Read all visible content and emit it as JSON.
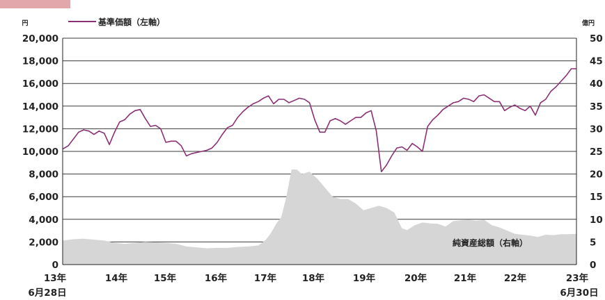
{
  "colors": {
    "tab": "#e1a7aa",
    "nav_line": "#8b2f73",
    "aum_area": "#d6d6d6",
    "grid": "#3a3a3a"
  },
  "chart_data": {
    "type": "line",
    "x_labels": [
      "13年",
      "14年",
      "15年",
      "16年",
      "17年",
      "18年",
      "19年",
      "20年",
      "21年",
      "22年",
      "23年"
    ],
    "x_start_sub": "6月28日",
    "x_end_sub": "6月30日",
    "left_axis": {
      "unit": "円",
      "ylim": [
        0,
        20000
      ],
      "ticks": [
        "0",
        "2,000",
        "4,000",
        "6,000",
        "8,000",
        "10,000",
        "12,000",
        "14,000",
        "16,000",
        "18,000",
        "20,000"
      ]
    },
    "right_axis": {
      "unit": "億円",
      "ylim": [
        0,
        50
      ],
      "ticks": [
        "0",
        "5",
        "10",
        "15",
        "20",
        "25",
        "30",
        "35",
        "40",
        "45",
        "50"
      ]
    },
    "grid": true,
    "series": [
      {
        "name": "基準価額（左軸）",
        "type": "line",
        "axis": "left",
        "x": [
          2013.49,
          2013.6,
          2013.7,
          2013.8,
          2013.9,
          2014.0,
          2014.1,
          2014.2,
          2014.3,
          2014.4,
          2014.5,
          2014.6,
          2014.7,
          2014.8,
          2014.9,
          2015.0,
          2015.1,
          2015.2,
          2015.3,
          2015.4,
          2015.5,
          2015.6,
          2015.7,
          2015.8,
          2015.9,
          2016.0,
          2016.1,
          2016.2,
          2016.3,
          2016.4,
          2016.5,
          2016.6,
          2016.7,
          2016.8,
          2016.9,
          2017.0,
          2017.1,
          2017.2,
          2017.3,
          2017.4,
          2017.5,
          2017.6,
          2017.7,
          2017.8,
          2017.9,
          2018.0,
          2018.1,
          2018.2,
          2018.3,
          2018.4,
          2018.5,
          2018.6,
          2018.7,
          2018.8,
          2018.9,
          2019.0,
          2019.1,
          2019.2,
          2019.3,
          2019.4,
          2019.5,
          2019.6,
          2019.7,
          2019.8,
          2019.9,
          2020.0,
          2020.1,
          2020.2,
          2020.3,
          2020.4,
          2020.5,
          2020.6,
          2020.7,
          2020.8,
          2020.9,
          2021.0,
          2021.1,
          2021.2,
          2021.3,
          2021.4,
          2021.5,
          2021.6,
          2021.7,
          2021.8,
          2021.9,
          2022.0,
          2022.1,
          2022.2,
          2022.3,
          2022.4,
          2022.5,
          2022.6,
          2022.7,
          2022.8,
          2022.9,
          2023.0,
          2023.1,
          2023.2,
          2023.3,
          2023.4,
          2023.5
        ],
        "values": [
          10200,
          10500,
          11100,
          11700,
          11900,
          11800,
          11500,
          11800,
          11600,
          10600,
          11700,
          12600,
          12800,
          13300,
          13600,
          13700,
          12900,
          12200,
          12300,
          12000,
          10800,
          10900,
          10900,
          10500,
          9600,
          9800,
          9900,
          10000,
          10100,
          10300,
          10800,
          11500,
          12100,
          12300,
          13000,
          13500,
          13900,
          14200,
          14400,
          14700,
          14900,
          14200,
          14600,
          14600,
          14300,
          14500,
          14700,
          14600,
          14300,
          12800,
          11700,
          11700,
          12700,
          12900,
          12700,
          12400,
          12700,
          13000,
          13000,
          13400,
          13600,
          11800,
          8200,
          8800,
          9600,
          10300,
          10400,
          10100,
          10700,
          10400,
          10000,
          12200,
          12800,
          13200,
          13700,
          14000,
          14300,
          14400,
          14700,
          14600,
          14400,
          14900,
          15000,
          14700,
          14400,
          14400,
          13600,
          13900,
          14100,
          13800,
          13600,
          14000,
          13200,
          14300,
          14600,
          15300,
          15700,
          16200,
          16700,
          17300,
          17300
        ]
      },
      {
        "name": "純資産総額（右軸）",
        "type": "area",
        "axis": "right",
        "x": [
          2013.49,
          2013.7,
          2013.9,
          2014.1,
          2014.3,
          2014.5,
          2014.7,
          2014.9,
          2015.1,
          2015.3,
          2015.5,
          2015.7,
          2015.9,
          2016.1,
          2016.3,
          2016.5,
          2016.7,
          2016.9,
          2017.1,
          2017.3,
          2017.45,
          2017.55,
          2017.65,
          2017.75,
          2017.85,
          2017.95,
          2018.05,
          2018.15,
          2018.3,
          2018.45,
          2018.6,
          2018.75,
          2018.9,
          2019.05,
          2019.2,
          2019.35,
          2019.5,
          2019.65,
          2019.8,
          2019.95,
          2020.1,
          2020.2,
          2020.35,
          2020.5,
          2020.65,
          2020.8,
          2020.95,
          2021.1,
          2021.25,
          2021.4,
          2021.55,
          2021.7,
          2021.85,
          2022.0,
          2022.15,
          2022.3,
          2022.45,
          2022.6,
          2022.75,
          2022.9,
          2023.05,
          2023.2,
          2023.35,
          2023.5
        ],
        "values": [
          5.3,
          5.6,
          5.7,
          5.5,
          5.3,
          4.8,
          4.6,
          4.8,
          5.0,
          4.9,
          4.8,
          4.6,
          4.0,
          3.8,
          3.6,
          3.7,
          3.7,
          3.9,
          4.0,
          4.2,
          5.5,
          7.0,
          9.0,
          10.5,
          15.0,
          21.0,
          21.0,
          20.0,
          20.5,
          19.0,
          17.0,
          15.0,
          14.5,
          14.5,
          13.5,
          12.0,
          12.5,
          13.0,
          12.5,
          11.5,
          8.0,
          7.6,
          8.7,
          9.3,
          9.1,
          9.0,
          8.4,
          9.6,
          9.8,
          9.9,
          9.7,
          9.9,
          8.7,
          8.2,
          7.5,
          6.8,
          6.6,
          6.4,
          6.1,
          6.6,
          6.5,
          6.7,
          6.7,
          6.8
        ]
      }
    ]
  }
}
